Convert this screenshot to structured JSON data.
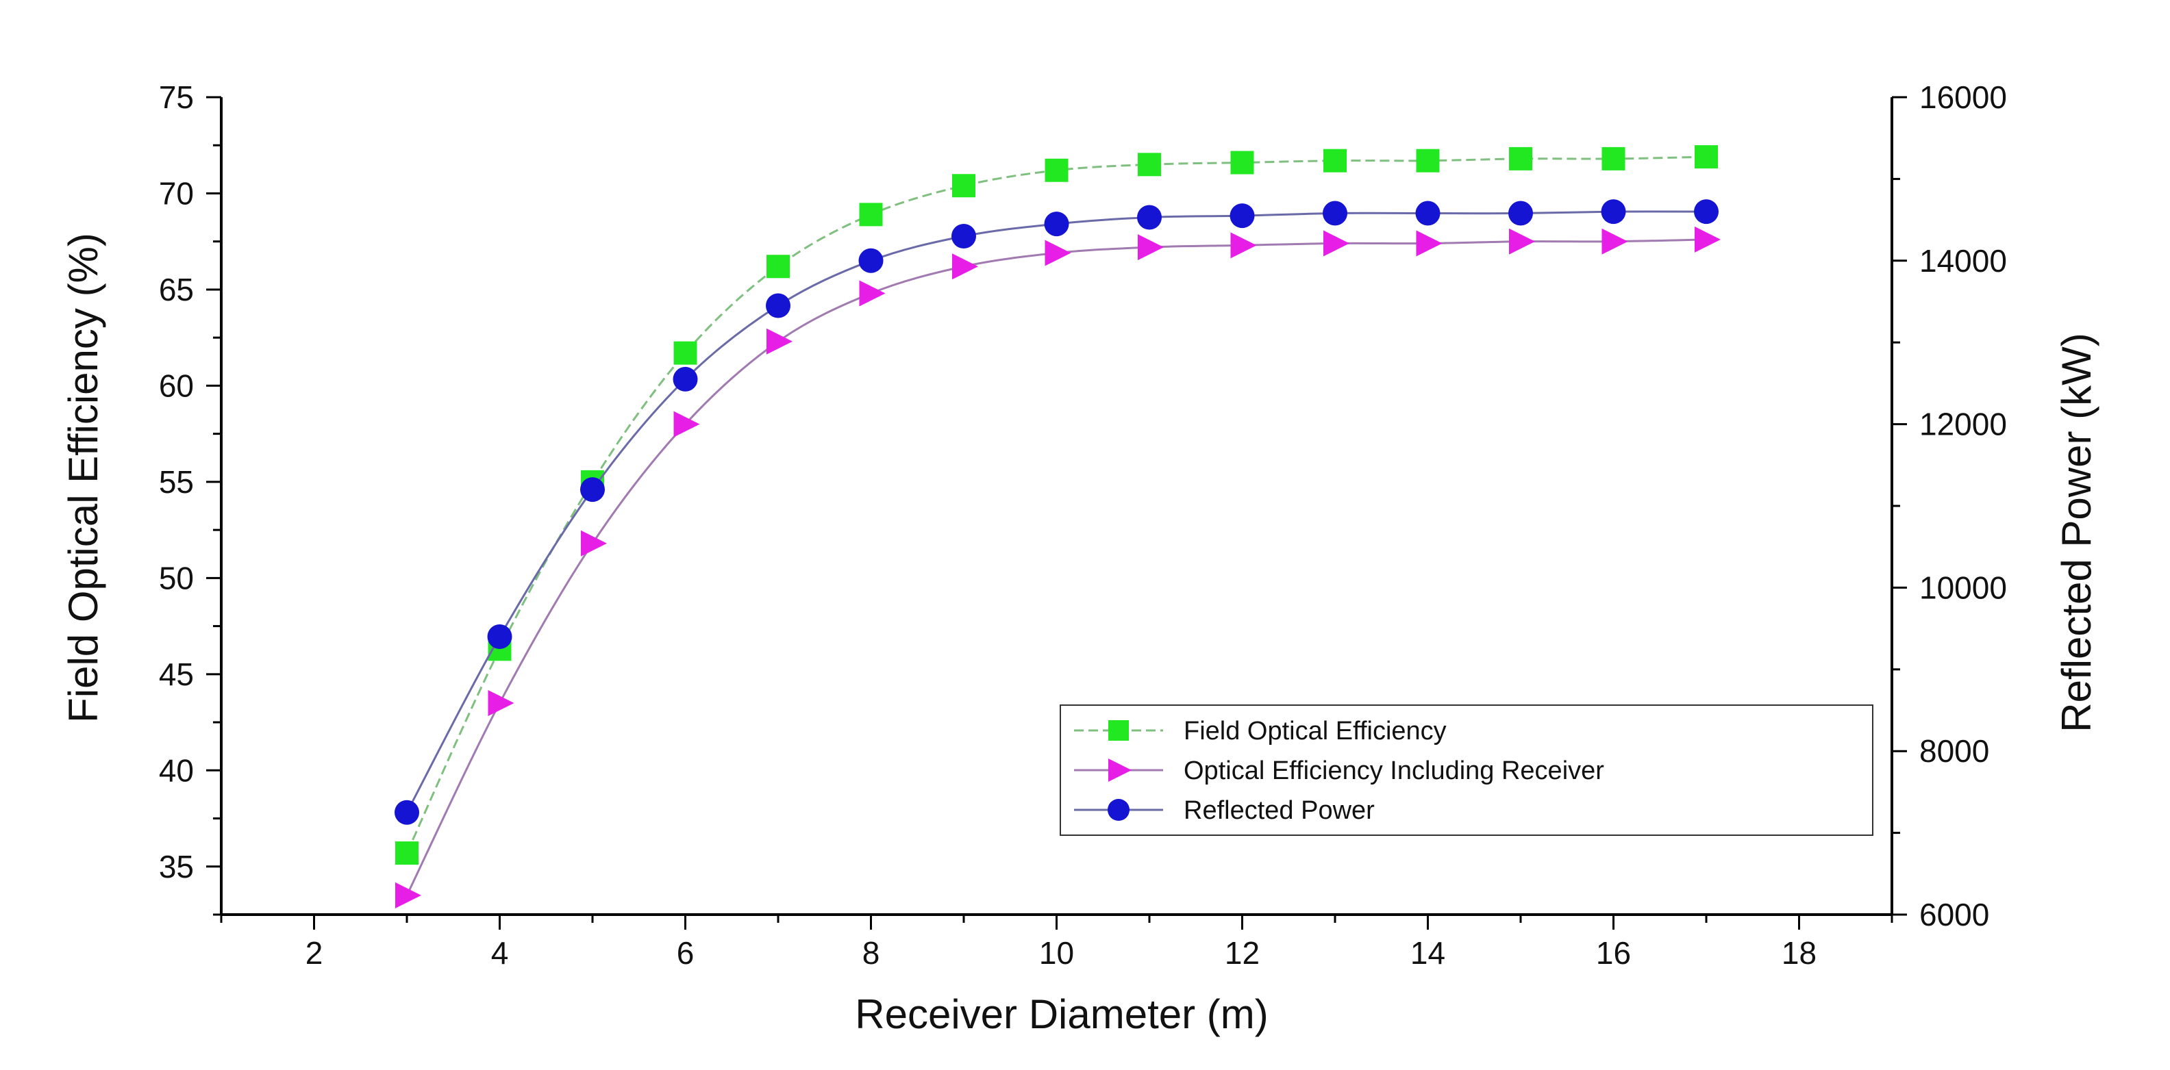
{
  "chart_data": {
    "type": "line",
    "title": "",
    "xlabel": "Receiver Diameter (m)",
    "ylabel": "Field Optical Efficiency (%)",
    "y2label": "Reflected Power (kW)",
    "xlim": [
      1,
      19
    ],
    "ylim": [
      32.5,
      75
    ],
    "y2lim": [
      6000,
      16000
    ],
    "xticks": [
      2,
      4,
      6,
      8,
      10,
      12,
      14,
      16,
      18
    ],
    "yticks": [
      35,
      40,
      45,
      50,
      55,
      60,
      65,
      70,
      75
    ],
    "y2ticks": [
      6000,
      8000,
      10000,
      12000,
      14000,
      16000
    ],
    "grid": false,
    "legend_position": "bottom-right",
    "x": [
      3,
      4,
      5,
      6,
      7,
      8,
      9,
      10,
      11,
      12,
      13,
      14,
      15,
      16,
      17
    ],
    "series": [
      {
        "name": "Field Optical Efficiency",
        "axis": "left",
        "marker": "square",
        "color": "#22e822",
        "line_color": "#7fbf7f",
        "values": [
          35.7,
          46.3,
          55.0,
          61.7,
          66.2,
          68.9,
          70.4,
          71.2,
          71.5,
          71.6,
          71.7,
          71.7,
          71.8,
          71.8,
          71.9
        ]
      },
      {
        "name": "Optical Efficiency Including Receiver",
        "axis": "left",
        "marker": "triangle-right",
        "color": "#e61ee6",
        "line_color": "#a07ab0",
        "values": [
          33.5,
          43.5,
          51.8,
          58.0,
          62.3,
          64.8,
          66.2,
          66.9,
          67.2,
          67.3,
          67.4,
          67.4,
          67.5,
          67.5,
          67.6
        ]
      },
      {
        "name": "Reflected Power",
        "axis": "right",
        "marker": "circle",
        "color": "#1414d2",
        "line_color": "#6a6aa8",
        "values": [
          7250,
          9400,
          11200,
          12550,
          13450,
          14000,
          14300,
          14450,
          14530,
          14550,
          14580,
          14580,
          14580,
          14600,
          14600
        ]
      }
    ]
  }
}
